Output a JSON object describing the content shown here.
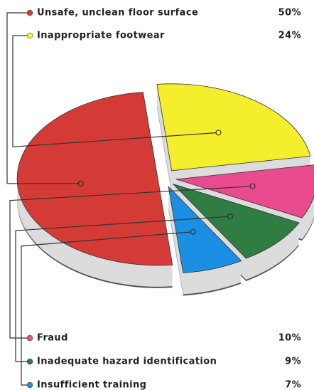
{
  "chart_data": {
    "type": "pie",
    "categories": [
      "Unsafe, unclean floor surface",
      "Inappropriate footwear",
      "Fraud",
      "Inadequate hazard identification",
      "Insufficient training"
    ],
    "values": [
      50,
      24,
      10,
      9,
      7
    ],
    "value_labels": [
      "50%",
      "24%",
      "10%",
      "9%",
      "7%"
    ],
    "colors": [
      "#d43b37",
      "#f4ee2c",
      "#ea4a8e",
      "#2f7d43",
      "#1b90e2"
    ]
  }
}
